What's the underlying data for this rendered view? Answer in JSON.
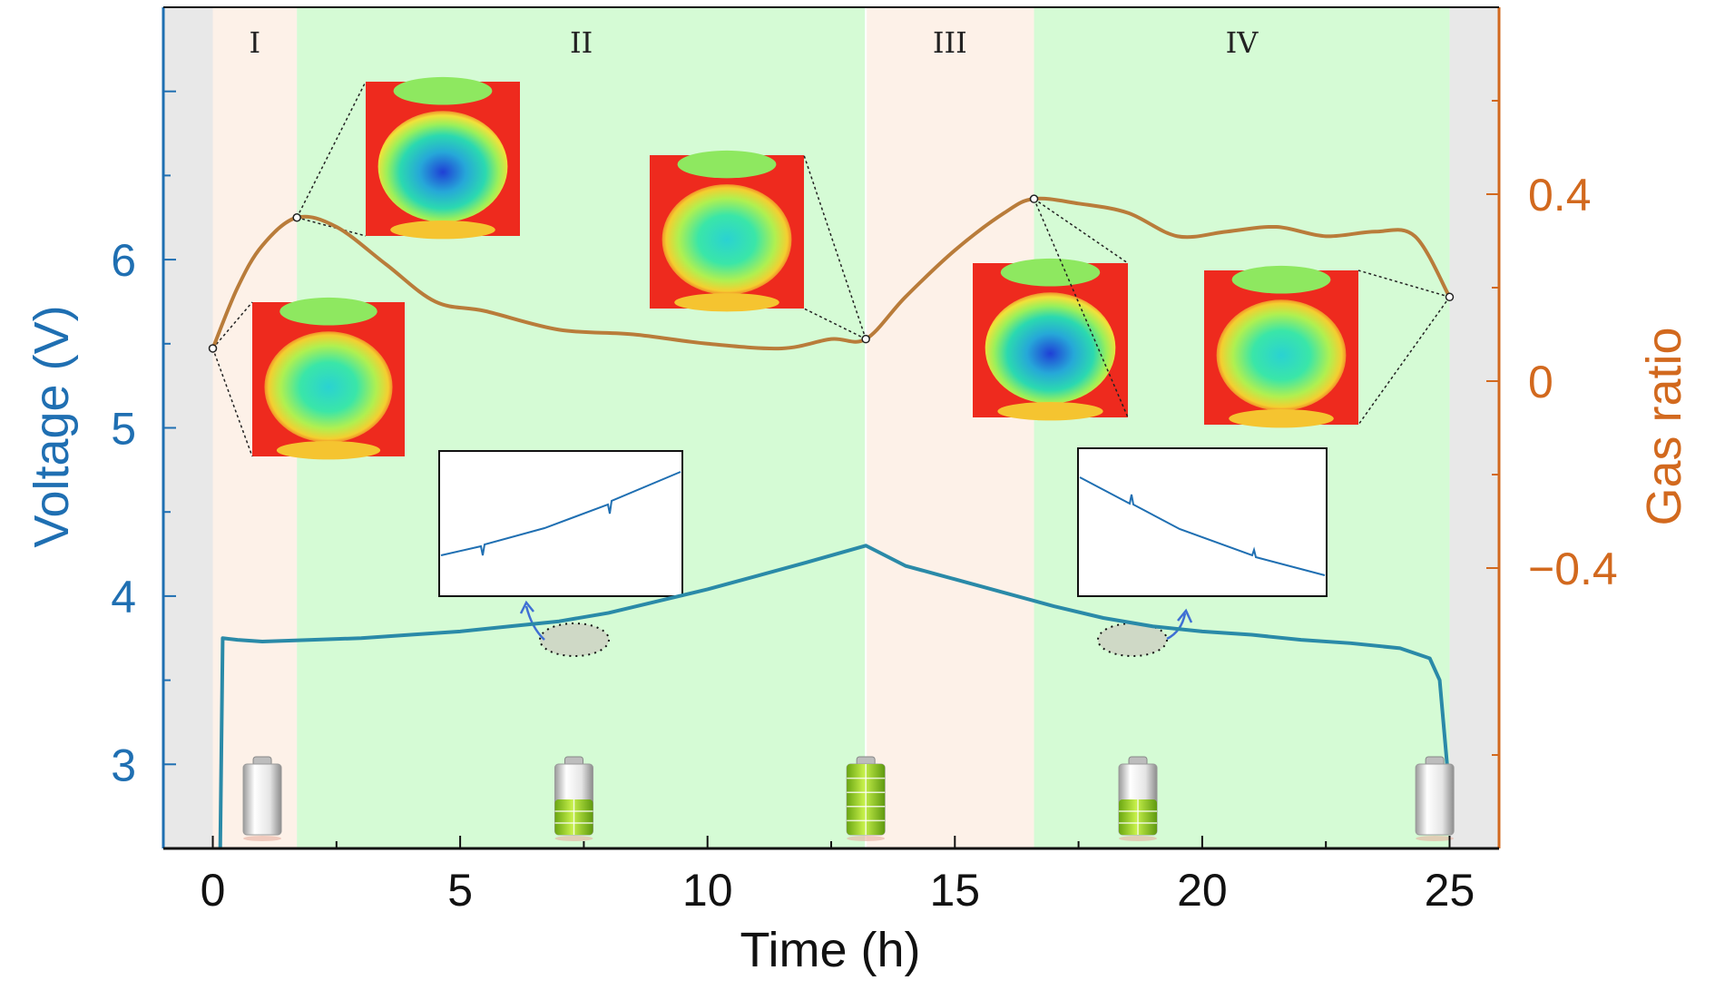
{
  "chart_data": {
    "type": "line",
    "xlabel": "Time (h)",
    "ylabel_left": "Voltage (V)",
    "ylabel_right": "Gas ratio",
    "xlim": [
      -1,
      26
    ],
    "ylim_left": [
      2.5,
      7.5
    ],
    "ylim_right": [
      -1.0,
      0.8
    ],
    "x_ticks": [
      0,
      5,
      10,
      15,
      20,
      25
    ],
    "x_tick_labels": [
      "0",
      "5",
      "10",
      "15",
      "20",
      "25"
    ],
    "y_left_ticks": [
      3,
      4,
      5,
      6
    ],
    "y_left_tick_labels": [
      "3",
      "4",
      "5",
      "6"
    ],
    "y_right_ticks": [
      -0.4,
      0,
      0.4
    ],
    "y_right_tick_labels": [
      "−0.4",
      "0",
      "0.4"
    ],
    "colors": {
      "voltage": "#2a8aa8",
      "gas": "#b97c3a",
      "left_axis": "#1f6fb2",
      "right_axis": "#d2691e",
      "phase_rest": "#e8e8e8",
      "phase_pink": "#fdf1e8",
      "phase_green": "#d5fbd5"
    },
    "phases": [
      {
        "label": "",
        "start": -1,
        "end": 0,
        "kind": "rest"
      },
      {
        "label": "I",
        "start": 0,
        "end": 1.7,
        "kind": "pink"
      },
      {
        "label": "II",
        "start": 1.7,
        "end": 13.2,
        "kind": "green"
      },
      {
        "label": "III",
        "start": 13.2,
        "end": 16.6,
        "kind": "pink"
      },
      {
        "label": "IV",
        "start": 16.6,
        "end": 25.0,
        "kind": "green"
      },
      {
        "label": "",
        "start": 25.0,
        "end": 26,
        "kind": "rest"
      }
    ],
    "series": [
      {
        "axis": "left",
        "x": [
          0.15,
          0.2,
          0.5,
          1.0,
          2.0,
          3.0,
          4.0,
          5.0,
          6.0,
          7.0,
          8.0,
          9.0,
          10.0,
          11.0,
          12.0,
          13.2,
          14.0,
          15.0,
          16.0,
          17.0,
          18.0,
          19.0,
          20.0,
          21.0,
          22.0,
          23.0,
          24.0,
          24.6,
          24.8,
          24.95
        ],
        "y": [
          2.5,
          3.75,
          3.74,
          3.73,
          3.74,
          3.75,
          3.77,
          3.79,
          3.82,
          3.85,
          3.9,
          3.97,
          4.04,
          4.12,
          4.2,
          4.3,
          4.18,
          4.1,
          4.02,
          3.94,
          3.87,
          3.82,
          3.79,
          3.77,
          3.74,
          3.72,
          3.69,
          3.63,
          3.5,
          3.0
        ]
      },
      {
        "axis": "right",
        "x": [
          0.0,
          0.5,
          1.0,
          1.7,
          2.5,
          3.5,
          4.5,
          5.5,
          7.0,
          8.5,
          10.0,
          11.5,
          12.5,
          13.2,
          14.0,
          15.0,
          16.0,
          16.6,
          17.5,
          18.5,
          19.5,
          20.5,
          21.5,
          22.5,
          23.5,
          24.3,
          25.0
        ],
        "y": [
          0.07,
          0.2,
          0.29,
          0.35,
          0.33,
          0.25,
          0.17,
          0.15,
          0.11,
          0.1,
          0.08,
          0.07,
          0.09,
          0.09,
          0.18,
          0.28,
          0.36,
          0.39,
          0.38,
          0.36,
          0.31,
          0.32,
          0.33,
          0.31,
          0.32,
          0.31,
          0.18
        ]
      }
    ],
    "inset_markers": [
      {
        "x": 0.0,
        "axis": "right",
        "y": 0.07
      },
      {
        "x": 1.7,
        "axis": "right",
        "y": 0.35
      },
      {
        "x": 13.2,
        "axis": "right",
        "y": 0.09
      },
      {
        "x": 16.6,
        "axis": "right",
        "y": 0.39
      },
      {
        "x": 25.0,
        "axis": "right",
        "y": 0.18
      }
    ],
    "battery_levels": [
      {
        "x": 1.0,
        "level": 0
      },
      {
        "x": 7.3,
        "level": 0.5
      },
      {
        "x": 13.2,
        "level": 1.0
      },
      {
        "x": 18.7,
        "level": 0.5
      },
      {
        "x": 24.7,
        "level": 0
      }
    ]
  }
}
